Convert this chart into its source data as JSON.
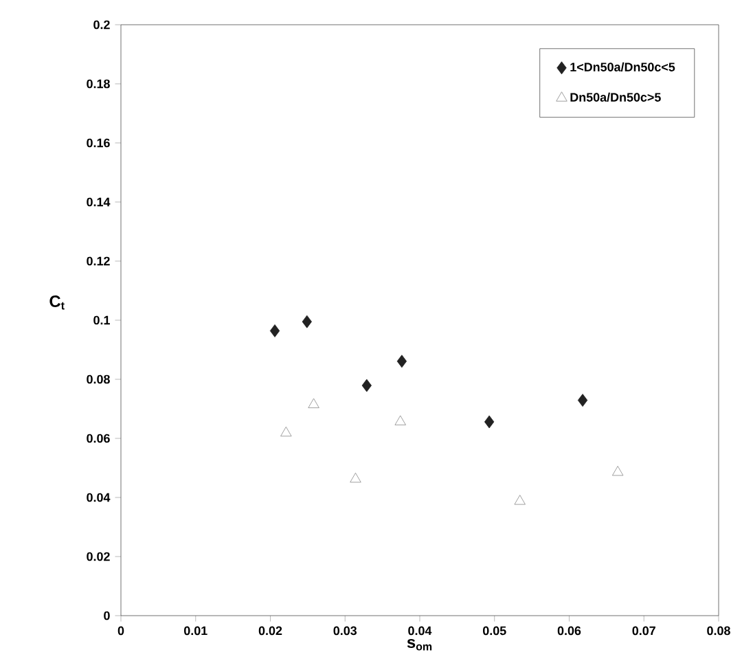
{
  "chart_data": {
    "type": "scatter",
    "xlabel": "s$_{om}$",
    "ylabel": "C$_{t}$",
    "xlim": [
      0,
      0.08
    ],
    "ylim": [
      0,
      0.2
    ],
    "xticks": [
      0,
      0.01,
      0.02,
      0.03,
      0.04,
      0.05,
      0.06,
      0.07,
      0.08
    ],
    "yticks": [
      0,
      0.02,
      0.04,
      0.06,
      0.08,
      0.1,
      0.12,
      0.14,
      0.16,
      0.18,
      0.2
    ],
    "grid": false,
    "legend": "top right",
    "series": [
      {
        "name": "1<Dn50a/Dn50c<5",
        "color": "#222222",
        "marker": "diamond",
        "x": [
          0.0206,
          0.0249,
          0.0329,
          0.0376,
          0.0493,
          0.0618
        ],
        "values": [
          0.0964,
          0.0995,
          0.0779,
          0.0861,
          0.0656,
          0.0729
        ]
      },
      {
        "name": "Dn50a/Dn50c>5",
        "color": "#888888",
        "marker": "triangle",
        "x": [
          0.0221,
          0.0258,
          0.0314,
          0.0374,
          0.0534,
          0.0665
        ],
        "values": [
          0.0618,
          0.0714,
          0.0462,
          0.0656,
          0.0387,
          0.0485
        ]
      }
    ]
  }
}
